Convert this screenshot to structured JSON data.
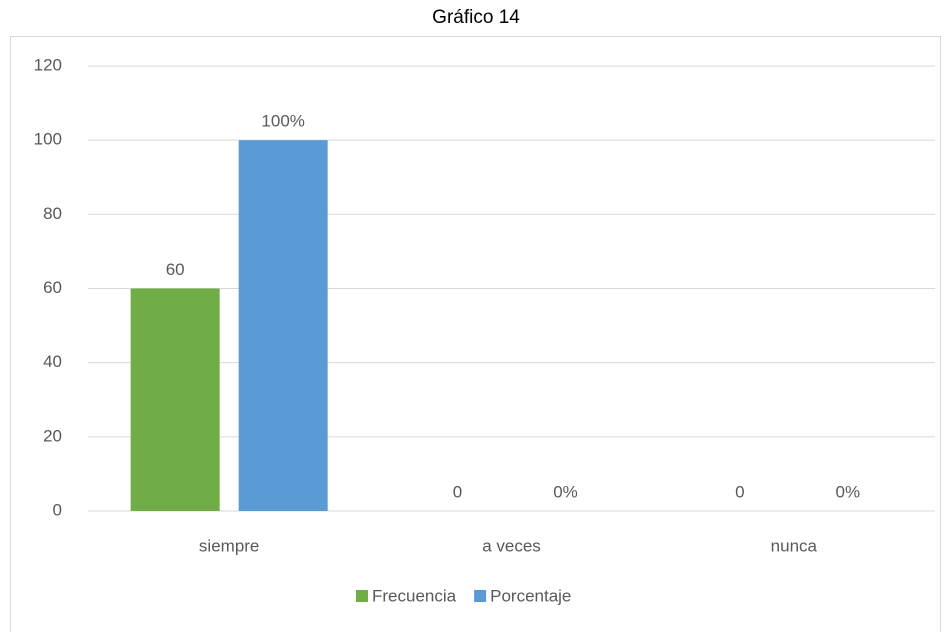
{
  "chart_data": {
    "type": "bar",
    "title": "Gráfico 14",
    "categories": [
      "siempre",
      "a veces",
      "nunca"
    ],
    "series": [
      {
        "name": "Frecuencia",
        "color": "#70ad47",
        "values": [
          60,
          0,
          0
        ]
      },
      {
        "name": "Porcentaje",
        "color": "#5b9bd5",
        "values": [
          100,
          0,
          0
        ],
        "value_labels": [
          "100%",
          "0%",
          "0%"
        ]
      }
    ],
    "ylim": [
      0,
      120
    ],
    "yticks": [
      0,
      20,
      40,
      60,
      80,
      100,
      120
    ],
    "grid": true,
    "legend": "bottom"
  }
}
